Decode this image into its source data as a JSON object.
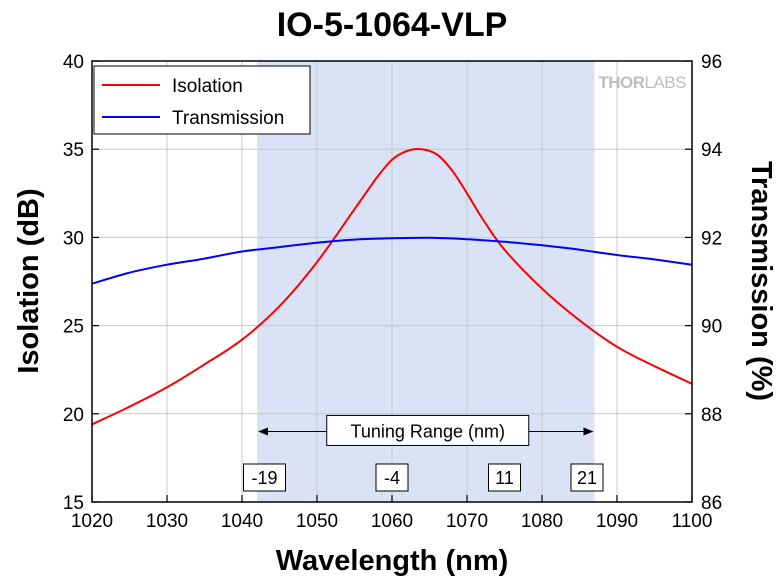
{
  "chart_data": {
    "type": "line",
    "title": "IO-5-1064-VLP",
    "xlabel": "Wavelength (nm)",
    "ylabel_left": "Isolation (dB)",
    "ylabel_right": "Transmission (%)",
    "xlim": [
      1020,
      1100
    ],
    "ylim_left": [
      15,
      40
    ],
    "ylim_right": [
      86,
      96
    ],
    "x_ticks": [
      1020,
      1030,
      1040,
      1050,
      1060,
      1070,
      1080,
      1090,
      1100
    ],
    "y_left_ticks": [
      15,
      20,
      25,
      30,
      35,
      40
    ],
    "y_right_ticks": [
      86,
      88,
      90,
      92,
      94,
      96
    ],
    "grid": true,
    "legend_position": "top-left",
    "brand": {
      "bold": "THOR",
      "light": "LABS"
    },
    "shaded_region": {
      "x_start": 1042,
      "x_end": 1087,
      "color": "#d9e3f5"
    },
    "annotation": {
      "label": "Tuning Range (nm)",
      "y": 19,
      "boxes": [
        {
          "x": 1043,
          "label": "-19"
        },
        {
          "x": 1060,
          "label": "-4"
        },
        {
          "x": 1075,
          "label": "11"
        },
        {
          "x": 1086,
          "label": "21"
        }
      ]
    },
    "series": [
      {
        "name": "Isolation",
        "axis": "left",
        "color": "#ff0000",
        "x": [
          1020,
          1025,
          1030,
          1035,
          1040,
          1045,
          1050,
          1055,
          1058,
          1060,
          1062,
          1064,
          1066,
          1068,
          1070,
          1072,
          1075,
          1080,
          1085,
          1090,
          1095,
          1100
        ],
        "y": [
          19.4,
          20.4,
          21.5,
          22.8,
          24.2,
          26.1,
          28.6,
          31.6,
          33.4,
          34.4,
          34.9,
          35.0,
          34.7,
          33.8,
          32.5,
          31.1,
          29.3,
          27.1,
          25.3,
          23.8,
          22.7,
          21.7
        ]
      },
      {
        "name": "Transmission",
        "axis": "right",
        "color": "#0000ff",
        "x": [
          1020,
          1025,
          1030,
          1035,
          1040,
          1045,
          1050,
          1055,
          1060,
          1065,
          1070,
          1075,
          1080,
          1085,
          1090,
          1095,
          1100
        ],
        "y": [
          90.95,
          91.2,
          91.38,
          91.52,
          91.68,
          91.78,
          91.88,
          91.95,
          91.98,
          91.99,
          91.96,
          91.9,
          91.82,
          91.72,
          91.6,
          91.5,
          91.38
        ]
      }
    ]
  }
}
